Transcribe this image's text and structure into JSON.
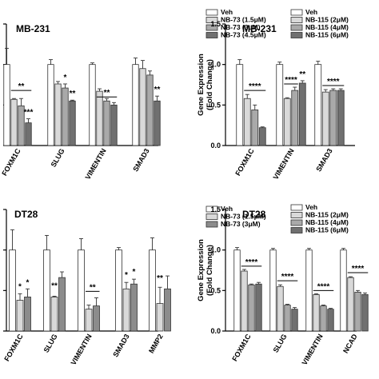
{
  "chart_data": [
    {
      "id": "p1",
      "type": "bar",
      "title": "MB-231",
      "ylabel_lines": [],
      "yticks": [],
      "ylim": [
        0,
        1.5
      ],
      "categories": [
        "FOXM1C",
        "SLUG",
        "VIMENTIN",
        "SMAD3"
      ],
      "series": [
        {
          "name": "Veh",
          "values": [
            1.0,
            1.0,
            1.0,
            1.0
          ],
          "errors": [
            0.2,
            0.06,
            0.02,
            0.08
          ]
        },
        {
          "name": "NB-73 (1.5μM)",
          "values": [
            0.57,
            0.76,
            0.67,
            0.95
          ],
          "errors": [
            0.01,
            0.03,
            0.03,
            0.1
          ]
        },
        {
          "name": "NB-73 (3μM)",
          "values": [
            0.49,
            0.71,
            0.55,
            0.87
          ],
          "errors": [
            0.09,
            0.05,
            0.03,
            0.05
          ]
        },
        {
          "name": "NB-73 (4.5μM)",
          "values": [
            0.28,
            0.55,
            0.5,
            0.55
          ],
          "errors": [
            0.05,
            0.01,
            0.03,
            0.06
          ]
        }
      ],
      "legend_colors": [
        "#ffffff",
        "#d9d9d9",
        "#a9a9a9",
        "#707070"
      ],
      "significance": [
        {
          "text": "**",
          "cat": 0,
          "s1": 1,
          "s2": 3,
          "y": 0.68,
          "line": true
        },
        {
          "text": "***",
          "cat": 0,
          "s1": 3,
          "s2": 3,
          "y": 0.36,
          "line": false
        },
        {
          "text": "*",
          "cat": 1,
          "s1": 2,
          "s2": 2,
          "y": 0.79,
          "line": false
        },
        {
          "text": "**",
          "cat": 1,
          "s1": 3,
          "s2": 3,
          "y": 0.59,
          "line": false
        },
        {
          "text": "**",
          "cat": 2,
          "s1": 1,
          "s2": 3,
          "y": 0.6,
          "line": true
        },
        {
          "text": "**",
          "cat": 3,
          "s1": 3,
          "s2": 3,
          "y": 0.64,
          "line": false
        }
      ]
    },
    {
      "id": "p2",
      "type": "bar",
      "title": "MB-231",
      "ylabel_lines": [
        "Gene Expression",
        "(Fold Change)"
      ],
      "yticks": [
        "0.0",
        "0.5",
        "1.0",
        "1.5"
      ],
      "ylim": [
        0,
        1.5
      ],
      "categories": [
        "FOXM1C",
        "VIMENTIN",
        "SMAD3"
      ],
      "series": [
        {
          "name": "Veh",
          "values": [
            1.0,
            1.0,
            1.0
          ],
          "errors": [
            0.06,
            0.03,
            0.04
          ]
        },
        {
          "name": "NB-115 (2μM)",
          "values": [
            0.58,
            0.58,
            0.66
          ],
          "errors": [
            0.05,
            0.01,
            0.03
          ]
        },
        {
          "name": "NB-115 (4μM)",
          "values": [
            0.44,
            0.68,
            0.68
          ],
          "errors": [
            0.06,
            0.04,
            0.02
          ]
        },
        {
          "name": "NB-115 (6μM)",
          "values": [
            0.22,
            0.77,
            0.68
          ],
          "errors": [
            0.01,
            0.03,
            0.02
          ]
        }
      ],
      "legend_colors": [
        "#ffffff",
        "#d9d9d9",
        "#a9a9a9",
        "#707070"
      ],
      "significance": [
        {
          "text": "****",
          "cat": 0,
          "s1": 1,
          "s2": 3,
          "y": 0.68,
          "line": true
        },
        {
          "text": "****",
          "cat": 1,
          "s1": 1,
          "s2": 2,
          "y": 0.76,
          "line": true
        },
        {
          "text": "**",
          "cat": 1,
          "s1": 3,
          "s2": 3,
          "y": 0.83,
          "line": false
        },
        {
          "text": "****",
          "cat": 2,
          "s1": 1,
          "s2": 3,
          "y": 0.74,
          "line": true
        }
      ]
    },
    {
      "id": "p3",
      "type": "bar",
      "title": "DT28",
      "ylabel_lines": [],
      "yticks": [],
      "ylim": [
        0,
        1.5
      ],
      "categories": [
        "FOXM1C",
        "SLUG",
        "VIMENTIN",
        "SMAD3",
        "MMP2"
      ],
      "series": [
        {
          "name": "Veh",
          "values": [
            1.0,
            1.0,
            1.0,
            1.0,
            1.0
          ],
          "errors": [
            0.25,
            0.18,
            0.14,
            0.03,
            0.15
          ]
        },
        {
          "name": "NB-73 (1.5μM)",
          "values": [
            0.38,
            0.42,
            0.27,
            0.52,
            0.34
          ],
          "errors": [
            0.08,
            0.01,
            0.05,
            0.08,
            0.2
          ]
        },
        {
          "name": "NB-73 (3μM)",
          "values": [
            0.42,
            0.66,
            0.31,
            0.58,
            0.52
          ],
          "errors": [
            0.1,
            0.07,
            0.1,
            0.06,
            0.16
          ]
        }
      ],
      "legend_colors": [
        "#ffffff",
        "#d9d9d9",
        "#8c8c8c"
      ],
      "significance": [
        {
          "text": "*",
          "cat": 0,
          "s1": 1,
          "s2": 1,
          "y": 0.5,
          "line": false
        },
        {
          "text": "*",
          "cat": 0,
          "s1": 2,
          "s2": 2,
          "y": 0.55,
          "line": false
        },
        {
          "text": "**",
          "cat": 1,
          "s1": 1,
          "s2": 1,
          "y": 0.51,
          "line": false
        },
        {
          "text": "**",
          "cat": 2,
          "s1": 1,
          "s2": 2,
          "y": 0.49,
          "line": true
        },
        {
          "text": "*",
          "cat": 3,
          "s1": 1,
          "s2": 1,
          "y": 0.64,
          "line": false
        },
        {
          "text": "*",
          "cat": 3,
          "s1": 2,
          "s2": 2,
          "y": 0.68,
          "line": false
        },
        {
          "text": "**",
          "cat": 4,
          "s1": 1,
          "s2": 1,
          "y": 0.6,
          "line": false
        }
      ]
    },
    {
      "id": "p4",
      "type": "bar",
      "title": "DT28",
      "ylabel_lines": [
        "Gene Expression",
        "(Fold Change)"
      ],
      "yticks": [
        "0.0",
        "0.5",
        "1.0",
        "1.5"
      ],
      "ylim": [
        0,
        1.5
      ],
      "categories": [
        "FOXM1C",
        "SLUG",
        "VIMENTIN",
        "NCAD"
      ],
      "series": [
        {
          "name": "Veh",
          "values": [
            1.0,
            1.0,
            1.0,
            1.0
          ],
          "errors": [
            0.03,
            0.02,
            0.02,
            0.02
          ]
        },
        {
          "name": "NB-115 (2μM)",
          "values": [
            0.74,
            0.55,
            0.45,
            0.66
          ],
          "errors": [
            0.02,
            0.02,
            0.01,
            0.01
          ]
        },
        {
          "name": "NB-115 (4μM)",
          "values": [
            0.57,
            0.32,
            0.31,
            0.48
          ],
          "errors": [
            0.01,
            0.01,
            0.01,
            0.02
          ]
        },
        {
          "name": "NB-115 (6μM)",
          "values": [
            0.58,
            0.27,
            0.27,
            0.45
          ],
          "errors": [
            0.02,
            0.02,
            0.01,
            0.02
          ]
        }
      ],
      "legend_colors": [
        "#ffffff",
        "#d9d9d9",
        "#a9a9a9",
        "#707070"
      ],
      "significance": [
        {
          "text": "****",
          "cat": 0,
          "s1": 1,
          "s2": 3,
          "y": 0.8,
          "line": true
        },
        {
          "text": "****",
          "cat": 1,
          "s1": 1,
          "s2": 3,
          "y": 0.62,
          "line": true
        },
        {
          "text": "****",
          "cat": 2,
          "s1": 1,
          "s2": 3,
          "y": 0.5,
          "line": true
        },
        {
          "text": "****",
          "cat": 3,
          "s1": 1,
          "s2": 3,
          "y": 0.72,
          "line": true
        }
      ]
    }
  ]
}
